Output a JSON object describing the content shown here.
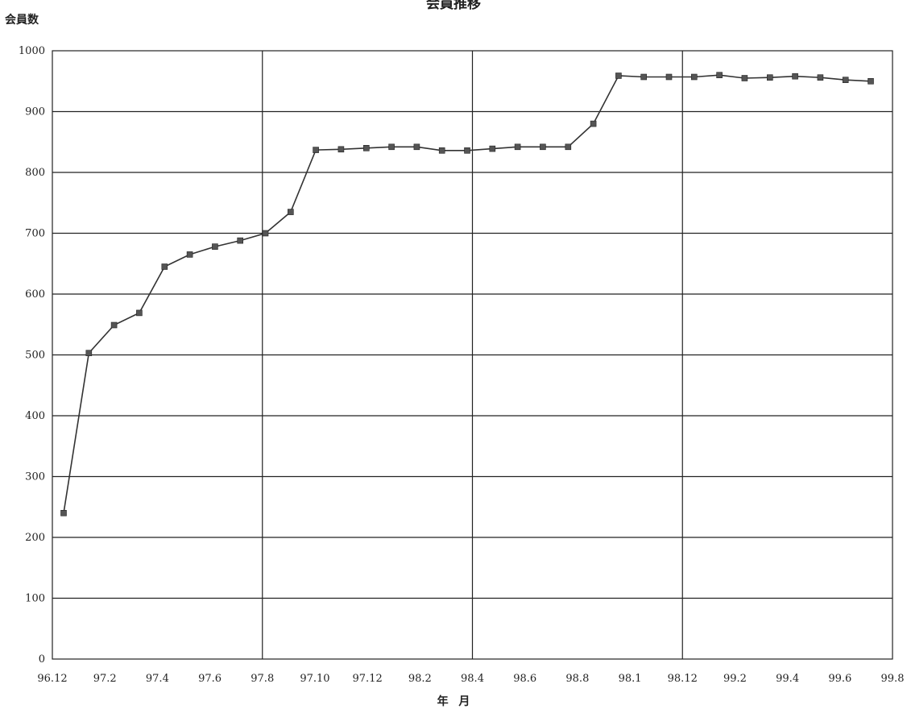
{
  "chart_data": {
    "type": "line",
    "title": "会員推移",
    "ylabel": "会員数",
    "xlabel": "年 月",
    "ylim": [
      0,
      1000
    ],
    "yticks": [
      0,
      100,
      200,
      300,
      400,
      500,
      600,
      700,
      800,
      900,
      1000
    ],
    "xtick_labels": [
      "96.12",
      "97.2",
      "97.4",
      "97.6",
      "97.8",
      "97.10",
      "97.12",
      "98.2",
      "98.4",
      "98.6",
      "98.8",
      "98.1",
      "98.12",
      "99.2",
      "99.4",
      "99.6",
      "99.8"
    ],
    "grid": true,
    "legend": "none",
    "colors": {
      "line": "#333333",
      "marker": "#555555",
      "grid": "#222222"
    },
    "series": [
      {
        "values": [
          240,
          503,
          549,
          569,
          645,
          665,
          678,
          688,
          700,
          735,
          837,
          838,
          840,
          842,
          842,
          836,
          836,
          839,
          842,
          842,
          842,
          880,
          959,
          957,
          957,
          957,
          960,
          955,
          956,
          958,
          956,
          952,
          950
        ]
      }
    ]
  }
}
